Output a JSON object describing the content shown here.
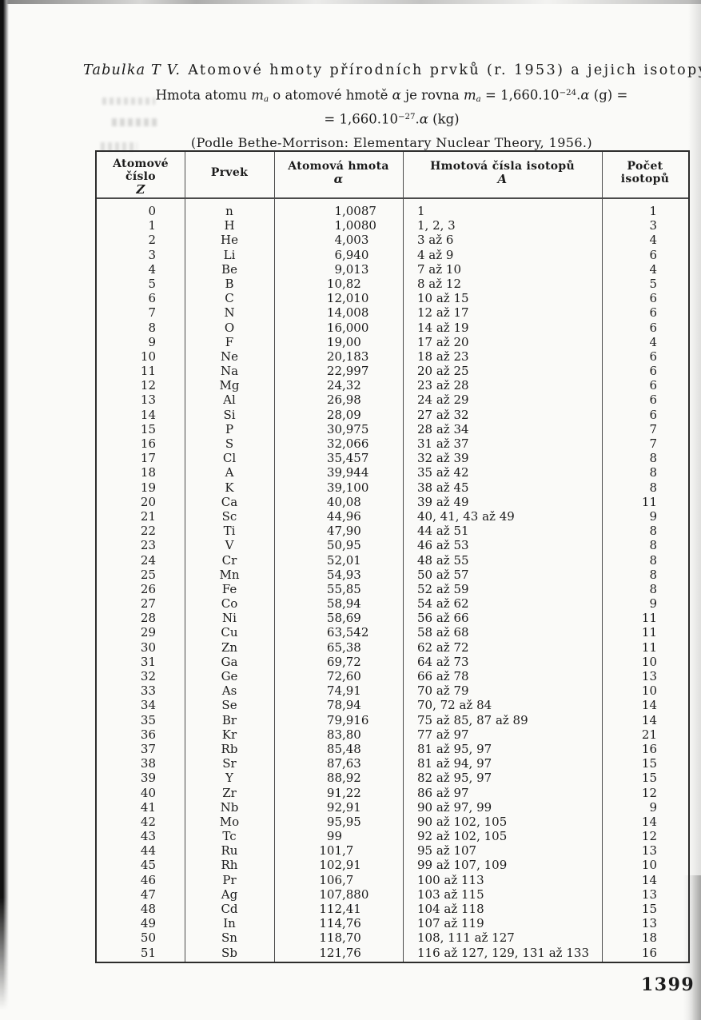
{
  "page": {
    "number": "1399"
  },
  "title": {
    "italic_prefix": "Tabulka T V.",
    "main": "Atomové hmoty přírodních prvků (r. 1953) a jejich isotopy"
  },
  "formula": {
    "line1": [
      {
        "t": "Hmota atomu ",
        "s": "n"
      },
      {
        "t": "m",
        "s": "i"
      },
      {
        "t": "a",
        "s": "sub"
      },
      {
        "t": " o atomové hmotě ",
        "s": "n"
      },
      {
        "t": "α",
        "s": "i"
      },
      {
        "t": " je rovna ",
        "s": "n"
      },
      {
        "t": "m",
        "s": "i"
      },
      {
        "t": "a",
        "s": "sub"
      },
      {
        "t": " = 1,660.10",
        "s": "n"
      },
      {
        "t": "−24",
        "s": "sup"
      },
      {
        "t": ".",
        "s": "n"
      },
      {
        "t": "α",
        "s": "i"
      },
      {
        "t": " (g) =",
        "s": "n"
      }
    ],
    "line2": [
      {
        "t": "= 1,660.10",
        "s": "n"
      },
      {
        "t": "−27",
        "s": "sup"
      },
      {
        "t": ".",
        "s": "n"
      },
      {
        "t": "α",
        "s": "i"
      },
      {
        "t": " (kg)",
        "s": "n"
      }
    ],
    "source": "(Podle Bethe-Morrison: Elementary Nuclear Theory, 1956.)"
  },
  "table": {
    "headers": {
      "col1": [
        "Atomové",
        "číslo",
        "Z"
      ],
      "col2": [
        "Prvek"
      ],
      "col3": [
        "Atomová hmota",
        "α"
      ],
      "col4": [
        "Hmotová čísla isotopů",
        "A"
      ],
      "col5": [
        "Počet",
        "isotopů"
      ]
    },
    "rows": [
      [
        "0",
        "n",
        "1,0087",
        "1",
        "1"
      ],
      [
        "1",
        "H",
        "1,0080",
        "1, 2, 3",
        "3"
      ],
      [
        "2",
        "He",
        "4,003",
        "3 až 6",
        "4"
      ],
      [
        "3",
        "Li",
        "6,940",
        "4 až 9",
        "6"
      ],
      [
        "4",
        "Be",
        "9,013",
        "7 až 10",
        "4"
      ],
      [
        "5",
        "B",
        "10,82",
        "8 až 12",
        "5"
      ],
      [
        "6",
        "C",
        "12,010",
        "10 až 15",
        "6"
      ],
      [
        "7",
        "N",
        "14,008",
        "12 až 17",
        "6"
      ],
      [
        "8",
        "O",
        "16,000",
        "14 až 19",
        "6"
      ],
      [
        "9",
        "F",
        "19,00",
        "17 až 20",
        "4"
      ],
      [
        "10",
        "Ne",
        "20,183",
        "18 až 23",
        "6"
      ],
      [
        "11",
        "Na",
        "22,997",
        "20 až 25",
        "6"
      ],
      [
        "12",
        "Mg",
        "24,32",
        "23 až 28",
        "6"
      ],
      [
        "13",
        "Al",
        "26,98",
        "24 až 29",
        "6"
      ],
      [
        "14",
        "Si",
        "28,09",
        "27 až 32",
        "6"
      ],
      [
        "15",
        "P",
        "30,975",
        "28 až 34",
        "7"
      ],
      [
        "16",
        "S",
        "32,066",
        "31 až 37",
        "7"
      ],
      [
        "17",
        "Cl",
        "35,457",
        "32 až 39",
        "8"
      ],
      [
        "18",
        "A",
        "39,944",
        "35 až 42",
        "8"
      ],
      [
        "19",
        "K",
        "39,100",
        "38 až 45",
        "8"
      ],
      [
        "20",
        "Ca",
        "40,08",
        "39 až 49",
        "11"
      ],
      [
        "21",
        "Sc",
        "44,96",
        "40, 41, 43 až 49",
        "9"
      ],
      [
        "22",
        "Ti",
        "47,90",
        "44 až 51",
        "8"
      ],
      [
        "23",
        "V",
        "50,95",
        "46 až 53",
        "8"
      ],
      [
        "24",
        "Cr",
        "52,01",
        "48 až 55",
        "8"
      ],
      [
        "25",
        "Mn",
        "54,93",
        "50 až 57",
        "8"
      ],
      [
        "26",
        "Fe",
        "55,85",
        "52 až 59",
        "8"
      ],
      [
        "27",
        "Co",
        "58,94",
        "54 až 62",
        "9"
      ],
      [
        "28",
        "Ni",
        "58,69",
        "56 až 66",
        "11"
      ],
      [
        "29",
        "Cu",
        "63,542",
        "58 až 68",
        "11"
      ],
      [
        "30",
        "Zn",
        "65,38",
        "62 až 72",
        "11"
      ],
      [
        "31",
        "Ga",
        "69,72",
        "64 až 73",
        "10"
      ],
      [
        "32",
        "Ge",
        "72,60",
        "66 až 78",
        "13"
      ],
      [
        "33",
        "As",
        "74,91",
        "70 až 79",
        "10"
      ],
      [
        "34",
        "Se",
        "78,94",
        "70, 72 až 84",
        "14"
      ],
      [
        "35",
        "Br",
        "79,916",
        "75 až 85, 87 až 89",
        "14"
      ],
      [
        "36",
        "Kr",
        "83,80",
        "77 až 97",
        "21"
      ],
      [
        "37",
        "Rb",
        "85,48",
        "81 až 95, 97",
        "16"
      ],
      [
        "38",
        "Sr",
        "87,63",
        "81 až 94, 97",
        "15"
      ],
      [
        "39",
        "Y",
        "88,92",
        "82 až 95, 97",
        "15"
      ],
      [
        "40",
        "Zr",
        "91,22",
        "86 až 97",
        "12"
      ],
      [
        "41",
        "Nb",
        "92,91",
        "90 až 97, 99",
        "9"
      ],
      [
        "42",
        "Mo",
        "95,95",
        "90 až 102, 105",
        "14"
      ],
      [
        "43",
        "Tc",
        "99",
        "92 až 102, 105",
        "12"
      ],
      [
        "44",
        "Ru",
        "101,7",
        "95 až 107",
        "13"
      ],
      [
        "45",
        "Rh",
        "102,91",
        "99 až 107, 109",
        "10"
      ],
      [
        "46",
        "Pr",
        "106,7",
        "100 až 113",
        "14"
      ],
      [
        "47",
        "Ag",
        "107,880",
        "103 až 115",
        "13"
      ],
      [
        "48",
        "Cd",
        "112,41",
        "104 až 118",
        "15"
      ],
      [
        "49",
        "In",
        "114,76",
        "107 až 119",
        "13"
      ],
      [
        "50",
        "Sn",
        "118,70",
        "108, 111 až 127",
        "18"
      ],
      [
        "51",
        "Sb",
        "121,76",
        "116 až 127, 129, 131 až 133",
        "16"
      ]
    ]
  }
}
